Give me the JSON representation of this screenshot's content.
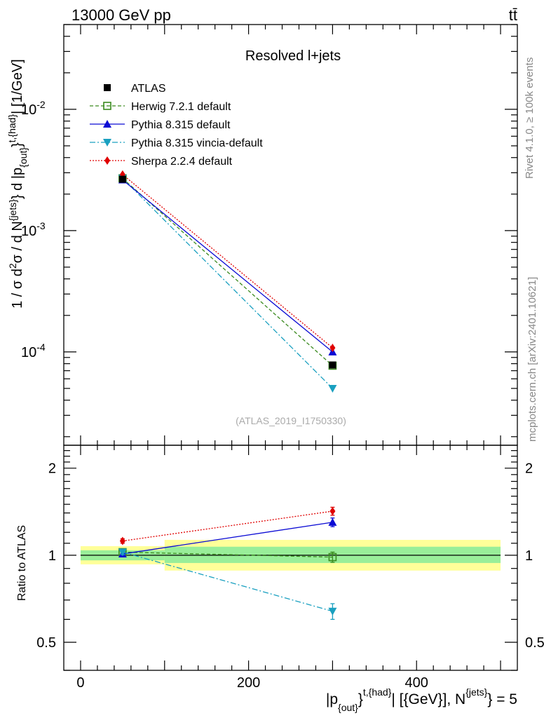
{
  "header": {
    "left": "13000 GeV pp",
    "right": "tt̄"
  },
  "watermarks": {
    "rivet": "Rivet 4.1.0, ≥ 100k events",
    "mcplots": "mcplots.cern.ch [arXiv:2401.10621]",
    "analysis": "(ATLAS_2019_I1750330)"
  },
  "chart_data": [
    {
      "type": "line",
      "panel": "main",
      "title": "Resolved l+jets",
      "xlabel": "|p_{out}^{t,{had}}| [{GeV}], N^{jets} = 5",
      "ylabel": "1 / σ d²σ / d N^{jets} d |p_{out}^{t,{had}}| [1/GeV]",
      "xlim": [
        -20,
        520
      ],
      "ylim": [
        1.7e-05,
        0.05
      ],
      "yscale": "log",
      "yticks": [
        {
          "value": 0.01,
          "label": "10^-2"
        },
        {
          "value": 0.001,
          "label": "10^-3"
        },
        {
          "value": 0.0001,
          "label": "10^-4"
        }
      ],
      "x": [
        50,
        300
      ],
      "series": [
        {
          "name": "ATLAS",
          "values": [
            0.00265,
            7.8e-05
          ],
          "color": "#000000",
          "style": "data",
          "marker": "square"
        },
        {
          "name": "Herwig 7.2.1 default",
          "values": [
            0.0027,
            7.7e-05
          ],
          "color": "#3a8a1e",
          "style": "dashed",
          "marker": "open-square"
        },
        {
          "name": "Pythia 8.315 default",
          "values": [
            0.00262,
            0.0001
          ],
          "color": "#0b0bd4",
          "style": "solid",
          "marker": "triangle-up"
        },
        {
          "name": "Pythia 8.315 vincia-default",
          "values": [
            0.0027,
            5e-05
          ],
          "color": "#1aa0c0",
          "style": "dashdot",
          "marker": "triangle-down"
        },
        {
          "name": "Sherpa 2.2.4 default",
          "values": [
            0.0029,
            0.000108
          ],
          "color": "#e00000",
          "style": "dotted",
          "marker": "diamond"
        }
      ]
    },
    {
      "type": "line",
      "panel": "ratio",
      "ylabel": "Ratio to ATLAS",
      "xlim": [
        -20,
        520
      ],
      "ylim": [
        0.4,
        2.4
      ],
      "yscale": "log",
      "xticks": [
        0,
        200,
        400
      ],
      "yticks": [
        {
          "value": 0.5,
          "label": "0.5"
        },
        {
          "value": 1,
          "label": "1"
        },
        {
          "value": 2,
          "label": "2"
        }
      ],
      "bands": [
        {
          "x": [
            0,
            100
          ],
          "inner": [
            0.96,
            1.04
          ],
          "outer": [
            0.93,
            1.075
          ]
        },
        {
          "x": [
            100,
            500
          ],
          "inner": [
            0.94,
            1.07
          ],
          "outer": [
            0.885,
            1.13
          ]
        }
      ],
      "x": [
        50,
        300
      ],
      "series": [
        {
          "name": "Herwig 7.2.1 default",
          "values": [
            1.025,
            0.985
          ],
          "errors": [
            0.02,
            0.04
          ]
        },
        {
          "name": "Pythia 8.315 default",
          "values": [
            1.01,
            1.3
          ],
          "errors": [
            0.02,
            0.045
          ]
        },
        {
          "name": "Pythia 8.315 vincia-default",
          "values": [
            1.025,
            0.64
          ],
          "errors": [
            0.02,
            0.04
          ]
        },
        {
          "name": "Sherpa 2.2.4 default",
          "values": [
            1.12,
            1.42
          ],
          "errors": [
            0.02,
            0.045
          ]
        }
      ]
    }
  ]
}
